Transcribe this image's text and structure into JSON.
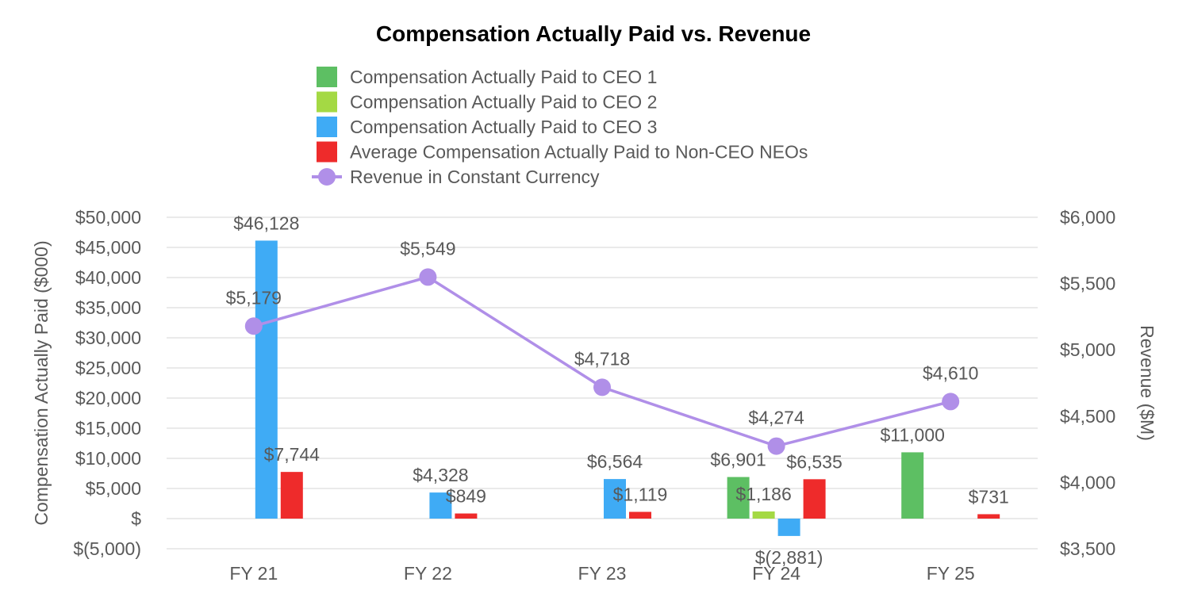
{
  "chart_data": {
    "type": "bar",
    "title": "Compensation Actually Paid vs. Revenue",
    "categories": [
      "FY 21",
      "FY 22",
      "FY 23",
      "FY 24",
      "FY 25"
    ],
    "y_left": {
      "label": "Compensation Actually Paid ($000)",
      "range": [
        -5000,
        50000
      ],
      "ticks": [
        50000,
        45000,
        40000,
        35000,
        30000,
        25000,
        20000,
        15000,
        10000,
        5000,
        0,
        -5000
      ],
      "tick_labels": [
        "$50,000",
        "$45,000",
        "$40,000",
        "$35,000",
        "$30,000",
        "$25,000",
        "$20,000",
        "$15,000",
        "$10,000",
        "$5,000",
        "$",
        "$(5,000)"
      ]
    },
    "y_right": {
      "label": "Revenue ($M)",
      "range": [
        3500,
        6000
      ],
      "ticks": [
        6000,
        5500,
        5000,
        4500,
        4000,
        3500
      ],
      "tick_labels": [
        "$6,000",
        "$5,500",
        "$5,000",
        "$4,500",
        "$4,000",
        "$3,500"
      ]
    },
    "grid": true,
    "legend_position": "top",
    "series": [
      {
        "name": "Compensation Actually Paid to CEO 1",
        "type": "bar",
        "color": "#5dbf63",
        "values": [
          null,
          null,
          null,
          6901,
          11000
        ],
        "labels": [
          "",
          "",
          "",
          "$6,901",
          "$11,000"
        ]
      },
      {
        "name": "Compensation Actually Paid to CEO 2",
        "type": "bar",
        "color": "#a4d944",
        "values": [
          null,
          null,
          null,
          1186,
          null
        ],
        "labels": [
          "",
          "",
          "",
          "$1,186",
          ""
        ]
      },
      {
        "name": "Compensation Actually Paid to CEO 3",
        "type": "bar",
        "color": "#3fabf5",
        "values": [
          46128,
          4328,
          6564,
          -2881,
          null
        ],
        "labels": [
          "$46,128",
          "$4,328",
          "$6,564",
          "$(2,881)",
          ""
        ]
      },
      {
        "name": "Average Compensation Actually Paid to Non-CEO NEOs",
        "type": "bar",
        "color": "#ee2b2b",
        "values": [
          7744,
          849,
          1119,
          6535,
          731
        ],
        "labels": [
          "$7,744",
          "$849",
          "$1,119",
          "$6,535",
          "$731"
        ]
      },
      {
        "name": "Revenue in Constant Currency",
        "type": "line",
        "axis": "right",
        "color": "#b08fe8",
        "values": [
          5179,
          5549,
          4718,
          4274,
          4610
        ],
        "labels": [
          "$5,179",
          "$5,549",
          "$4,718",
          "$4,274",
          "$4,610"
        ]
      }
    ]
  }
}
